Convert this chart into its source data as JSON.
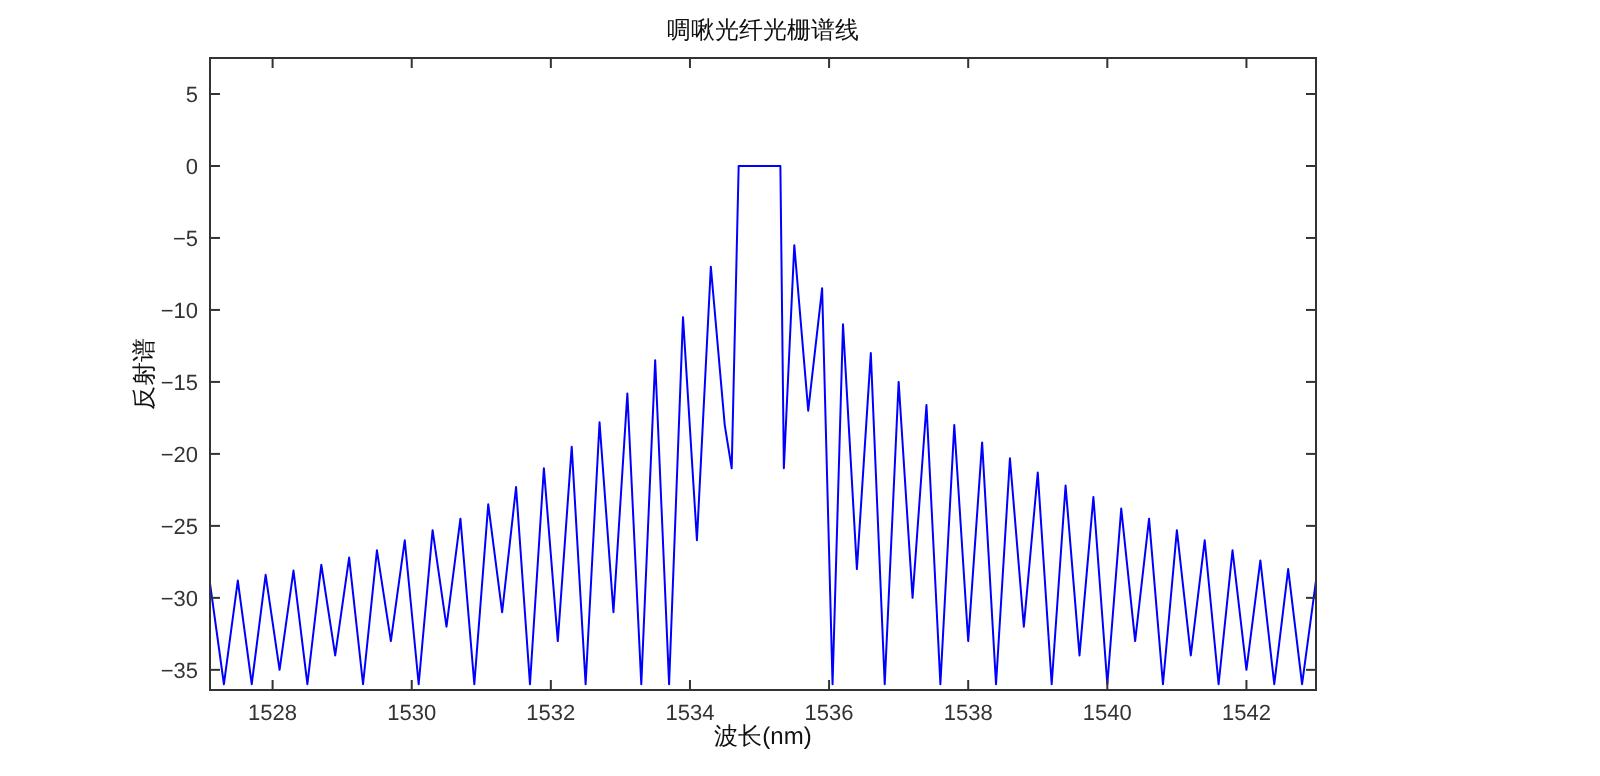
{
  "chart_data": {
    "type": "line",
    "title": "啁啾光纤光栅谱线",
    "xlabel": "波长(nm)",
    "ylabel": "反射谱",
    "color": "#0000ff",
    "xlim": [
      1527.1,
      1543
    ],
    "ylim": [
      -36.4,
      7.5
    ],
    "xticks": [
      1528,
      1530,
      1532,
      1534,
      1536,
      1538,
      1540,
      1542
    ],
    "yticks": [
      -35,
      -30,
      -25,
      -20,
      -15,
      -10,
      -5,
      0,
      5
    ],
    "x": [
      1527.1,
      1527.3,
      1527.5,
      1527.7,
      1527.9,
      1528.1,
      1528.3,
      1528.5,
      1528.7,
      1528.9,
      1529.1,
      1529.3,
      1529.5,
      1529.7,
      1529.9,
      1530.1,
      1530.3,
      1530.5,
      1530.7,
      1530.9,
      1531.1,
      1531.3,
      1531.5,
      1531.7,
      1531.9,
      1532.1,
      1532.3,
      1532.5,
      1532.7,
      1532.9,
      1533.1,
      1533.3,
      1533.5,
      1533.7,
      1533.9,
      1534.1,
      1534.3,
      1534.5,
      1534.6,
      1534.7,
      1535.3,
      1535.35,
      1535.5,
      1535.7,
      1535.9,
      1536.05,
      1536.2,
      1536.4,
      1536.6,
      1536.8,
      1537.0,
      1537.2,
      1537.4,
      1537.6,
      1537.8,
      1538.0,
      1538.2,
      1538.4,
      1538.6,
      1538.8,
      1539.0,
      1539.2,
      1539.4,
      1539.6,
      1539.8,
      1540.0,
      1540.2,
      1540.4,
      1540.6,
      1540.8,
      1541.0,
      1541.2,
      1541.4,
      1541.6,
      1541.8,
      1542.0,
      1542.2,
      1542.4,
      1542.6,
      1542.8,
      1543.0
    ],
    "values": [
      -29.0,
      -36,
      -28.8,
      -36,
      -28.4,
      -35,
      -28.1,
      -36,
      -27.7,
      -34,
      -27.2,
      -36,
      -26.7,
      -33,
      -26.0,
      -36,
      -25.3,
      -32,
      -24.5,
      -36,
      -23.5,
      -31,
      -22.3,
      -36,
      -21.0,
      -33,
      -19.5,
      -36,
      -17.8,
      -31,
      -15.8,
      -36,
      -13.5,
      -36,
      -10.5,
      -26,
      -7.0,
      -18,
      -21,
      0,
      0,
      -21,
      -5.5,
      -17,
      -8.5,
      -36,
      -11.0,
      -28,
      -13.0,
      -36,
      -15.0,
      -30,
      -16.6,
      -36,
      -18.0,
      -33,
      -19.2,
      -36,
      -20.3,
      -32,
      -21.3,
      -36,
      -22.2,
      -34,
      -23.0,
      -36,
      -23.8,
      -33,
      -24.5,
      -36,
      -25.3,
      -34,
      -26.0,
      -36,
      -26.7,
      -35,
      -27.4,
      -36,
      -28.0,
      -36,
      -28.8
    ]
  }
}
